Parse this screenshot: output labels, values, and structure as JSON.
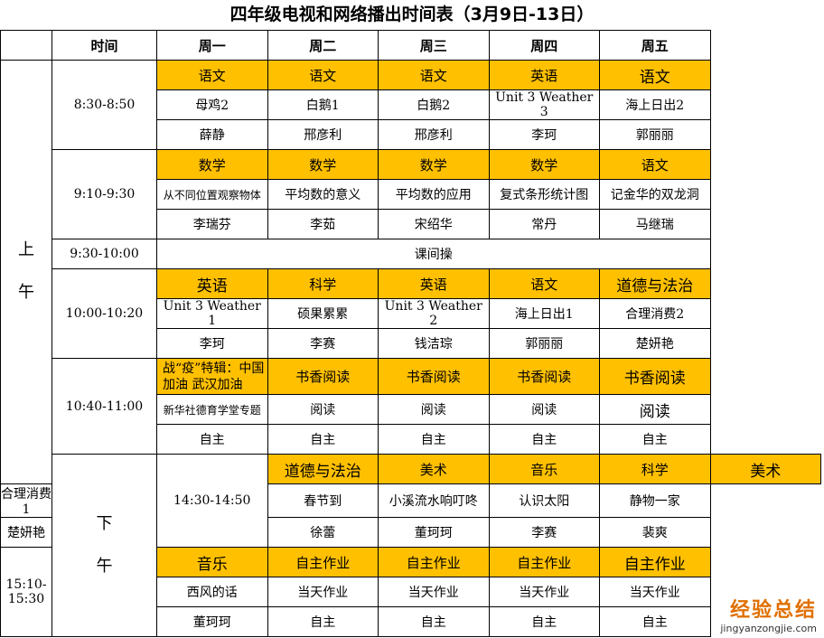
{
  "title": "四年级电视和网络播出时间表（3月9日-13日）",
  "header": [
    "时间",
    "周一",
    "周二",
    "周三",
    "周四",
    "周五"
  ],
  "halves": [
    "上\n\n午",
    "下\n\n午"
  ],
  "morning_label": "上",
  "morning_label2": "午",
  "afternoon_label": "下",
  "afternoon_label2": "午",
  "break": {
    "time": "9:30-10:00",
    "label": "课间操"
  },
  "slots": [
    {
      "time": "8:30-8:50",
      "subjects": [
        "语文",
        "语文",
        "语文",
        "英语",
        "语文"
      ],
      "topics": [
        "母鸡2",
        "白鹅1",
        "白鹅2",
        "Unit 3 Weather 3",
        "海上日出2"
      ],
      "teachers": [
        "薛静",
        "邢彦利",
        "邢彦利",
        "李珂",
        "郭丽丽"
      ]
    },
    {
      "time": "9:10-9:30",
      "subjects": [
        "数学",
        "数学",
        "数学",
        "数学",
        "语文"
      ],
      "topics": [
        "从不同位置观察物体",
        "平均数的意义",
        "平均数的应用",
        "复式条形统计图",
        "记金华的双龙洞"
      ],
      "teachers": [
        "李瑞芬",
        "李茹",
        "宋绍华",
        "常丹",
        "马继瑞"
      ]
    },
    {
      "time": "10:00-10:20",
      "subjects": [
        "英语",
        "科学",
        "英语",
        "语文",
        "道德与法治"
      ],
      "topics": [
        "Unit 3 Weather 1",
        "硕果累累",
        "Unit 3 Weather 2",
        "海上日出1",
        "合理消费2"
      ],
      "teachers": [
        "李珂",
        "李赛",
        "钱洁琮",
        "郭丽丽",
        "楚妍艳"
      ]
    },
    {
      "time": "10:40-11:00",
      "subjects": [
        "战“疫”特辑：中国加油 武汉加油",
        "书香阅读",
        "书香阅读",
        "书香阅读",
        "书香阅读"
      ],
      "topics": [
        "新华社德育学堂专题",
        "阅读",
        "阅读",
        "阅读",
        "阅读"
      ],
      "teachers": [
        "自主",
        "自主",
        "自主",
        "自主",
        "自主"
      ]
    },
    {
      "time": "14:30-14:50",
      "subjects": [
        "道德与法治",
        "美术",
        "音乐",
        "科学",
        "美术"
      ],
      "topics": [
        "合理消费1",
        "春节到",
        "小溪流水响叮咚",
        "认识太阳",
        "静物一家"
      ],
      "teachers": [
        "楚妍艳",
        "徐蕾",
        "董珂珂",
        "李赛",
        "裴爽"
      ]
    },
    {
      "time": "15:10-15:30",
      "subjects": [
        "音乐",
        "自主作业",
        "自主作业",
        "自主作业",
        "自主作业"
      ],
      "topics": [
        "西风的话",
        "当天作业",
        "当天作业",
        "当天作业",
        "当天作业"
      ],
      "teachers": [
        "董珂珂",
        "自主",
        "自主",
        "自主",
        "自主"
      ]
    }
  ],
  "watermark": {
    "text1": "经验",
    "text2": "总结",
    "url": "jingyanzongjie.com"
  },
  "colors": {
    "subject_bg": "#FFC000"
  }
}
